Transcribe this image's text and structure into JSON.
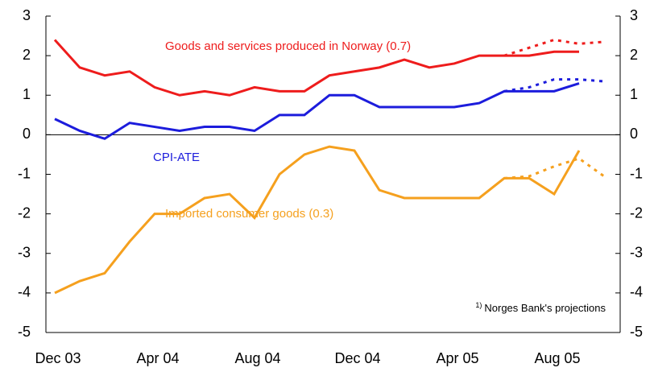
{
  "chart_data": {
    "type": "line",
    "categories": [
      "Dec 03",
      null,
      null,
      null,
      "Apr 04",
      null,
      null,
      null,
      "Aug 04",
      null,
      null,
      null,
      "Dec 04",
      null,
      null,
      null,
      "Apr 05",
      null,
      null,
      null,
      "Aug 05",
      null,
      null
    ],
    "series": [
      {
        "name": "Goods and services produced in Norway (0.7)",
        "color": "#ee1c1c",
        "values": [
          2.4,
          1.7,
          1.5,
          1.6,
          1.2,
          1.0,
          1.1,
          1.0,
          1.2,
          1.1,
          1.1,
          1.5,
          1.6,
          1.7,
          1.9,
          1.7,
          1.8,
          2.0,
          2.0,
          2.0,
          2.1,
          2.1,
          null
        ],
        "projection": [
          null,
          null,
          null,
          null,
          null,
          null,
          null,
          null,
          null,
          null,
          null,
          null,
          null,
          null,
          null,
          null,
          null,
          null,
          2.0,
          2.2,
          2.4,
          2.3,
          2.35
        ]
      },
      {
        "name": "CPI-ATE",
        "color": "#1c1cdc",
        "values": [
          0.4,
          0.1,
          -0.1,
          0.3,
          0.2,
          0.1,
          0.2,
          0.2,
          0.1,
          0.5,
          0.5,
          1.0,
          1.0,
          0.7,
          0.7,
          0.7,
          0.7,
          0.8,
          1.1,
          1.1,
          1.1,
          1.3,
          null
        ],
        "projection": [
          null,
          null,
          null,
          null,
          null,
          null,
          null,
          null,
          null,
          null,
          null,
          null,
          null,
          null,
          null,
          null,
          null,
          null,
          1.1,
          1.2,
          1.4,
          1.4,
          1.35
        ]
      },
      {
        "name": "Imported consumer goods (0.3)",
        "color": "#f5a01e",
        "values": [
          -4.0,
          -3.7,
          -3.5,
          -2.7,
          -2.0,
          -2.0,
          -1.6,
          -1.5,
          -2.1,
          -1.0,
          -0.5,
          -0.3,
          -0.4,
          -1.4,
          -1.6,
          -1.6,
          -1.6,
          -1.6,
          -1.1,
          -1.1,
          -1.5,
          -0.4,
          null
        ],
        "projection": [
          null,
          null,
          null,
          null,
          null,
          null,
          null,
          null,
          null,
          null,
          null,
          null,
          null,
          null,
          null,
          null,
          null,
          null,
          -1.1,
          -1.05,
          -0.8,
          -0.6,
          -1.05
        ]
      }
    ],
    "ylim": [
      -5,
      3
    ],
    "yticks": [
      -5,
      -4,
      -3,
      -2,
      -1,
      0,
      1,
      2,
      3
    ],
    "y2lim": [
      -5,
      3
    ],
    "y2ticks": [
      -5,
      -4,
      -3,
      -2,
      -1,
      0,
      1,
      2,
      3
    ],
    "footnote": {
      "marker": "1)",
      "text": "Norges Bank's projections"
    }
  }
}
